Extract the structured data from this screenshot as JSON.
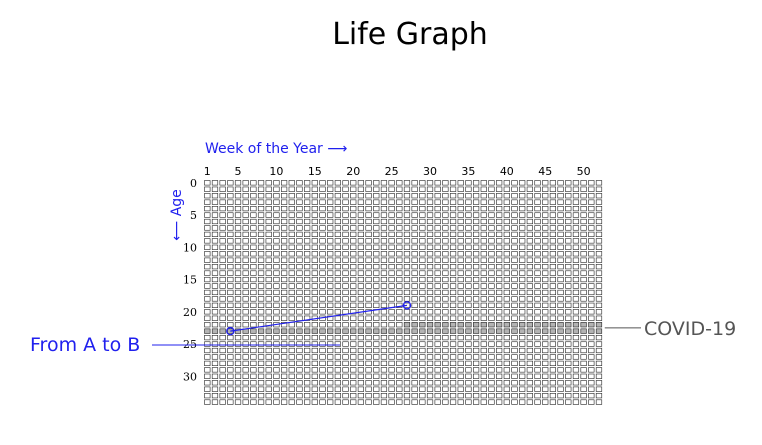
{
  "title": "Life Graph",
  "x_axis_label": "Week of the Year ⟶",
  "y_axis_label": "⟵ Age",
  "week_ticks": [
    "1",
    "5",
    "10",
    "15",
    "20",
    "25",
    "30",
    "35",
    "40",
    "45",
    "50"
  ],
  "age_ticks": [
    "0",
    "5",
    "10",
    "15",
    "20",
    "25",
    "30"
  ],
  "grid": {
    "weeks_per_year": 52,
    "years_visible": 35
  },
  "journey": {
    "label": "From A to B",
    "point_a": {
      "week": 4,
      "age": 23
    },
    "point_b": {
      "week": 27,
      "age": 19
    },
    "color": "#2020ee"
  },
  "highlight": {
    "label": "COVID-19",
    "start": {
      "week": 27,
      "age": 22
    },
    "end": {
      "week": 52,
      "age": 23
    },
    "color": "#555555",
    "fill": "#b3b3b3"
  },
  "colors": {
    "box_stroke": "#222222",
    "accent_blue": "#2020ee"
  }
}
